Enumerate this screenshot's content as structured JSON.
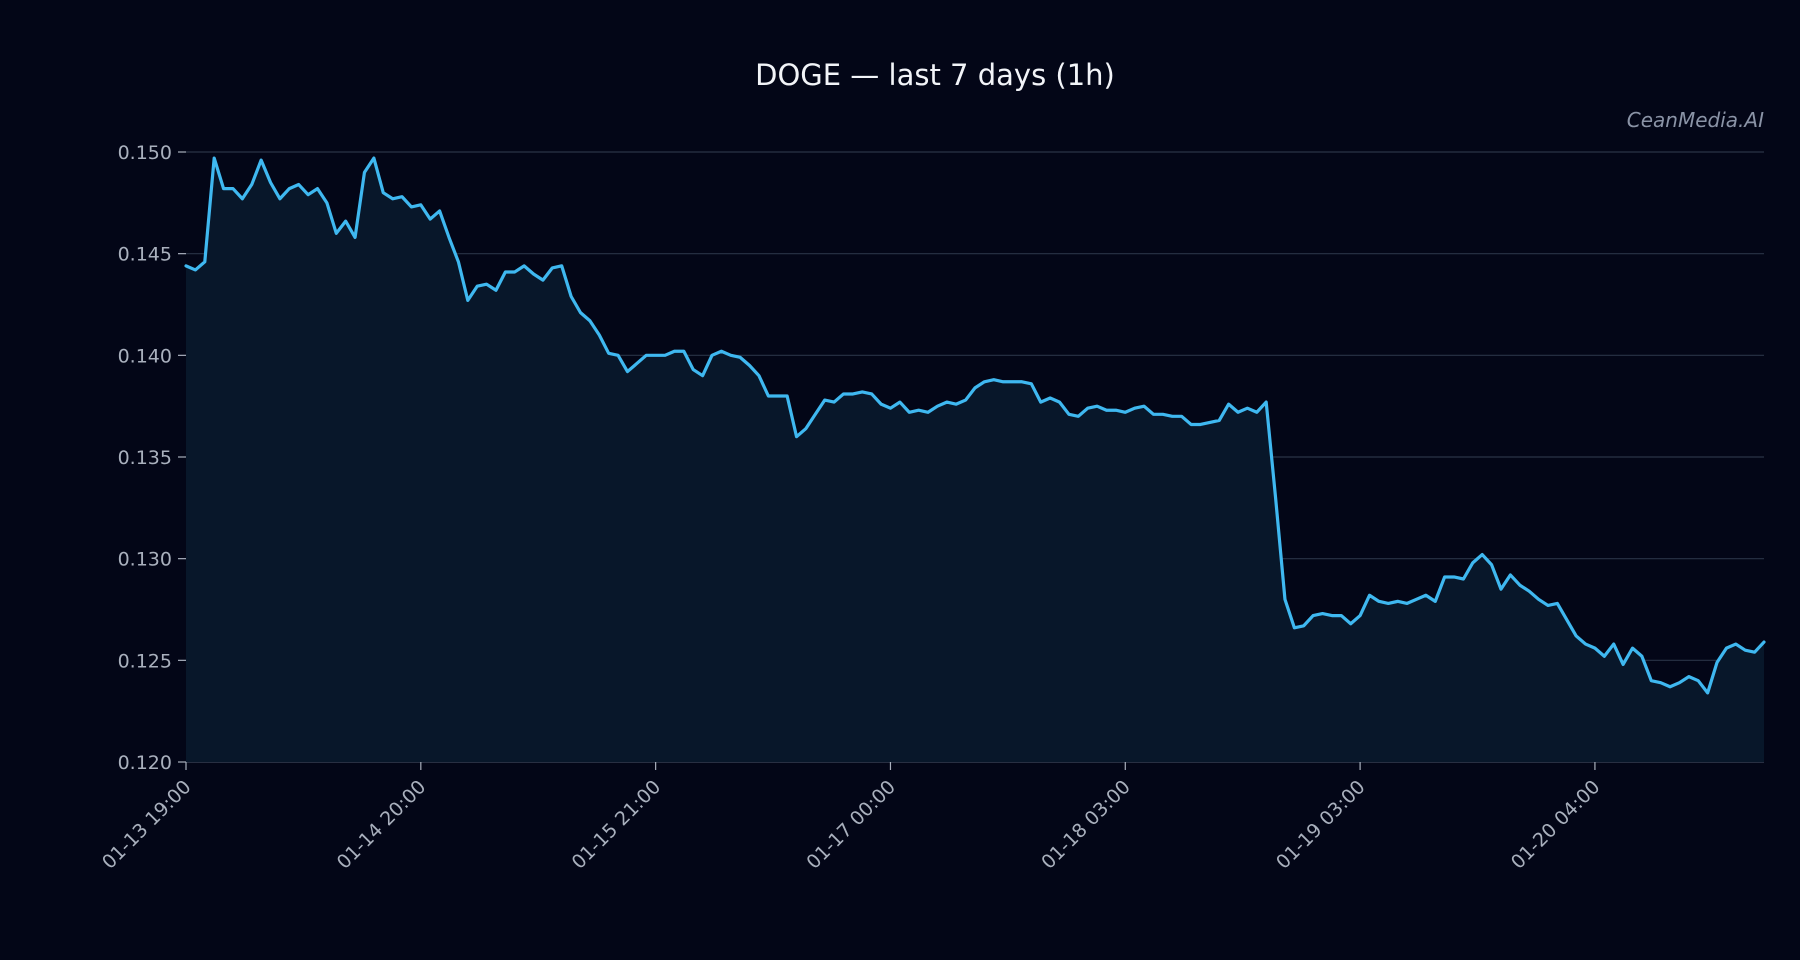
{
  "chart_data": {
    "type": "area",
    "title": "DOGE — last 7 days (1h)",
    "watermark": "CeanMedia.AI",
    "xlabel": "",
    "ylabel": "",
    "ylim": [
      0.12,
      0.151
    ],
    "yticks": [
      "0.120",
      "0.125",
      "0.130",
      "0.135",
      "0.140",
      "0.145",
      "0.150"
    ],
    "ytick_values": [
      0.12,
      0.125,
      0.13,
      0.135,
      0.14,
      0.145,
      0.15
    ],
    "xticks": [
      "01-13 19:00",
      "01-14 20:00",
      "01-15 21:00",
      "01-17 00:00",
      "01-18 03:00",
      "01-19 03:00",
      "01-20 04:00"
    ],
    "xtick_hours": [
      0,
      25,
      50,
      75,
      100,
      125,
      150
    ],
    "x_unit": "hourly samples starting 01-13 19:00",
    "grid": true,
    "line_color": "#3fb8f0",
    "fill_color": "#08172a",
    "background": "#030617",
    "series": [
      {
        "values": [
          0.1444,
          0.1442,
          0.1446,
          0.1497,
          0.1482,
          0.1482,
          0.1477,
          0.1484,
          0.1496,
          0.1485,
          0.1477,
          0.1482,
          0.1484,
          0.1479,
          0.1482,
          0.1475,
          0.146,
          0.1466,
          0.1458,
          0.149,
          0.1497,
          0.148,
          0.1477,
          0.1478,
          0.1473,
          0.1474,
          0.1467,
          0.1471,
          0.1458,
          0.1446,
          0.1427,
          0.1434,
          0.1435,
          0.1432,
          0.1441,
          0.1441,
          0.1444,
          0.144,
          0.1437,
          0.1443,
          0.1444,
          0.1429,
          0.1421,
          0.1417,
          0.141,
          0.1401,
          0.14,
          0.1392,
          0.1396,
          0.14,
          0.14,
          0.14,
          0.1402,
          0.1402,
          0.1393,
          0.139,
          0.14,
          0.1402,
          0.14,
          0.1399,
          0.1395,
          0.139,
          0.138,
          0.138,
          0.138,
          0.136,
          0.1364,
          0.1371,
          0.1378,
          0.1377,
          0.1381,
          0.1381,
          0.1382,
          0.1381,
          0.1376,
          0.1374,
          0.1377,
          0.1372,
          0.1373,
          0.1372,
          0.1375,
          0.1377,
          0.1376,
          0.1378,
          0.1384,
          0.1387,
          0.1388,
          0.1387,
          0.1387,
          0.1387,
          0.1386,
          0.1377,
          0.1379,
          0.1377,
          0.1371,
          0.137,
          0.1374,
          0.1375,
          0.1373,
          0.1373,
          0.1372,
          0.1374,
          0.1375,
          0.1371,
          0.1371,
          0.137,
          0.137,
          0.1366,
          0.1366,
          0.1367,
          0.1368,
          0.1376,
          0.1372,
          0.1374,
          0.1372,
          0.1377,
          0.133,
          0.128,
          0.1266,
          0.1267,
          0.1272,
          0.1273,
          0.1272,
          0.1272,
          0.1268,
          0.1272,
          0.1282,
          0.1279,
          0.1278,
          0.1279,
          0.1278,
          0.128,
          0.1282,
          0.1279,
          0.1291,
          0.1291,
          0.129,
          0.1298,
          0.1302,
          0.1297,
          0.1285,
          0.1292,
          0.1287,
          0.1284,
          0.128,
          0.1277,
          0.1278,
          0.127,
          0.1262,
          0.1258,
          0.1256,
          0.1252,
          0.1258,
          0.1248,
          0.1256,
          0.1252,
          0.124,
          0.1239,
          0.1237,
          0.1239,
          0.1242,
          0.124,
          0.1234,
          0.1249,
          0.1256,
          0.1258,
          0.1255,
          0.1254,
          0.1259
        ]
      }
    ]
  }
}
